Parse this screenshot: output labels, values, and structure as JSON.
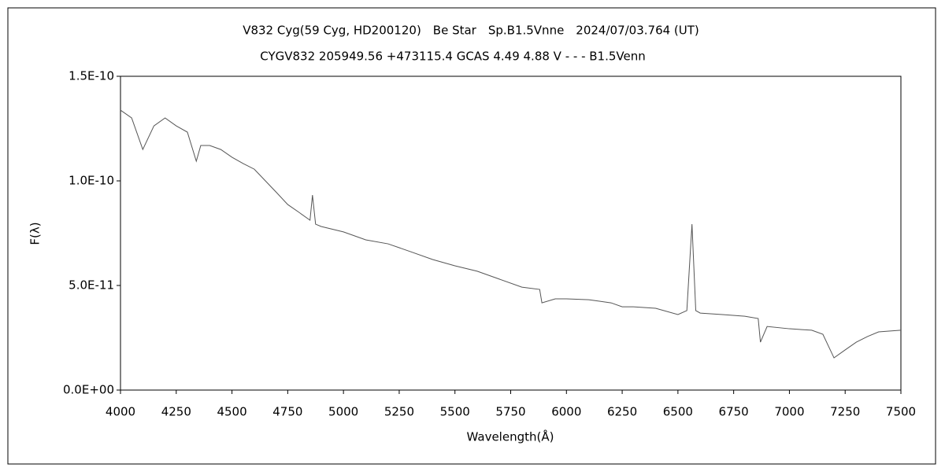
{
  "chart_data": {
    "type": "line",
    "title": "V832 Cyg(59 Cyg, HD200120)　Be Star　Sp.B1.5Vnne　2024/07/03.764 (UT)",
    "subtitle": "CYGV832 205949.56 +473115.4 GCAS 4.49 4.88 V - - - B1.5Venn",
    "x_label": "Wavelength(Å)",
    "y_label": "F(λ)",
    "xlim": [
      4000,
      7500
    ],
    "xticks": [
      4000,
      4250,
      4500,
      4750,
      5000,
      5250,
      5500,
      5750,
      6000,
      6250,
      6500,
      6750,
      7000,
      7250,
      7500
    ],
    "ylim": [
      0,
      1.5e-10
    ],
    "yticks": [
      {
        "value": 0,
        "label": "0.0E+00"
      },
      {
        "value": 5e-11,
        "label": "5.0E-11"
      },
      {
        "value": 1e-10,
        "label": "1.0E-10"
      },
      {
        "value": 1.5e-10,
        "label": "1.5E-10"
      }
    ],
    "grid": false,
    "x": [
      4000,
      4050,
      4100,
      4150,
      4200,
      4250,
      4300,
      4340,
      4360,
      4400,
      4450,
      4500,
      4550,
      4600,
      4650,
      4700,
      4750,
      4800,
      4850,
      4861,
      4875,
      4900,
      5000,
      5100,
      5200,
      5300,
      5400,
      5500,
      5600,
      5700,
      5800,
      5880,
      5890,
      5950,
      6000,
      6100,
      6200,
      6250,
      6300,
      6400,
      6500,
      6540,
      6563,
      6580,
      6600,
      6700,
      6800,
      6860,
      6870,
      6900,
      7000,
      7100,
      7150,
      7200,
      7250,
      7300,
      7350,
      7400,
      7500
    ],
    "series": [
      {
        "color": "#555555",
        "values": [
          1.338e-10,
          1.301e-10,
          1.15e-10,
          1.263e-10,
          1.301e-10,
          1.263e-10,
          1.233e-10,
          1.094e-10,
          1.169e-10,
          1.169e-10,
          1.15e-10,
          1.113e-10,
          1.083e-10,
          1.056e-10,
          1e-10,
          9.44e-11,
          8.87e-11,
          8.5e-11,
          8.12e-11,
          9.32e-11,
          7.93e-11,
          7.82e-11,
          7.56e-11,
          7.18e-11,
          6.99e-11,
          6.62e-11,
          6.24e-11,
          5.94e-11,
          5.68e-11,
          5.3e-11,
          4.92e-11,
          4.81e-11,
          4.17e-11,
          4.36e-11,
          4.36e-11,
          4.32e-11,
          4.17e-11,
          3.98e-11,
          3.98e-11,
          3.91e-11,
          3.61e-11,
          3.8e-11,
          7.93e-11,
          3.8e-11,
          3.68e-11,
          3.61e-11,
          3.53e-11,
          3.42e-11,
          2.29e-11,
          3.04e-11,
          2.93e-11,
          2.86e-11,
          2.67e-11,
          1.54e-11,
          1.92e-11,
          2.29e-11,
          2.56e-11,
          2.78e-11,
          2.86e-11
        ]
      }
    ]
  }
}
